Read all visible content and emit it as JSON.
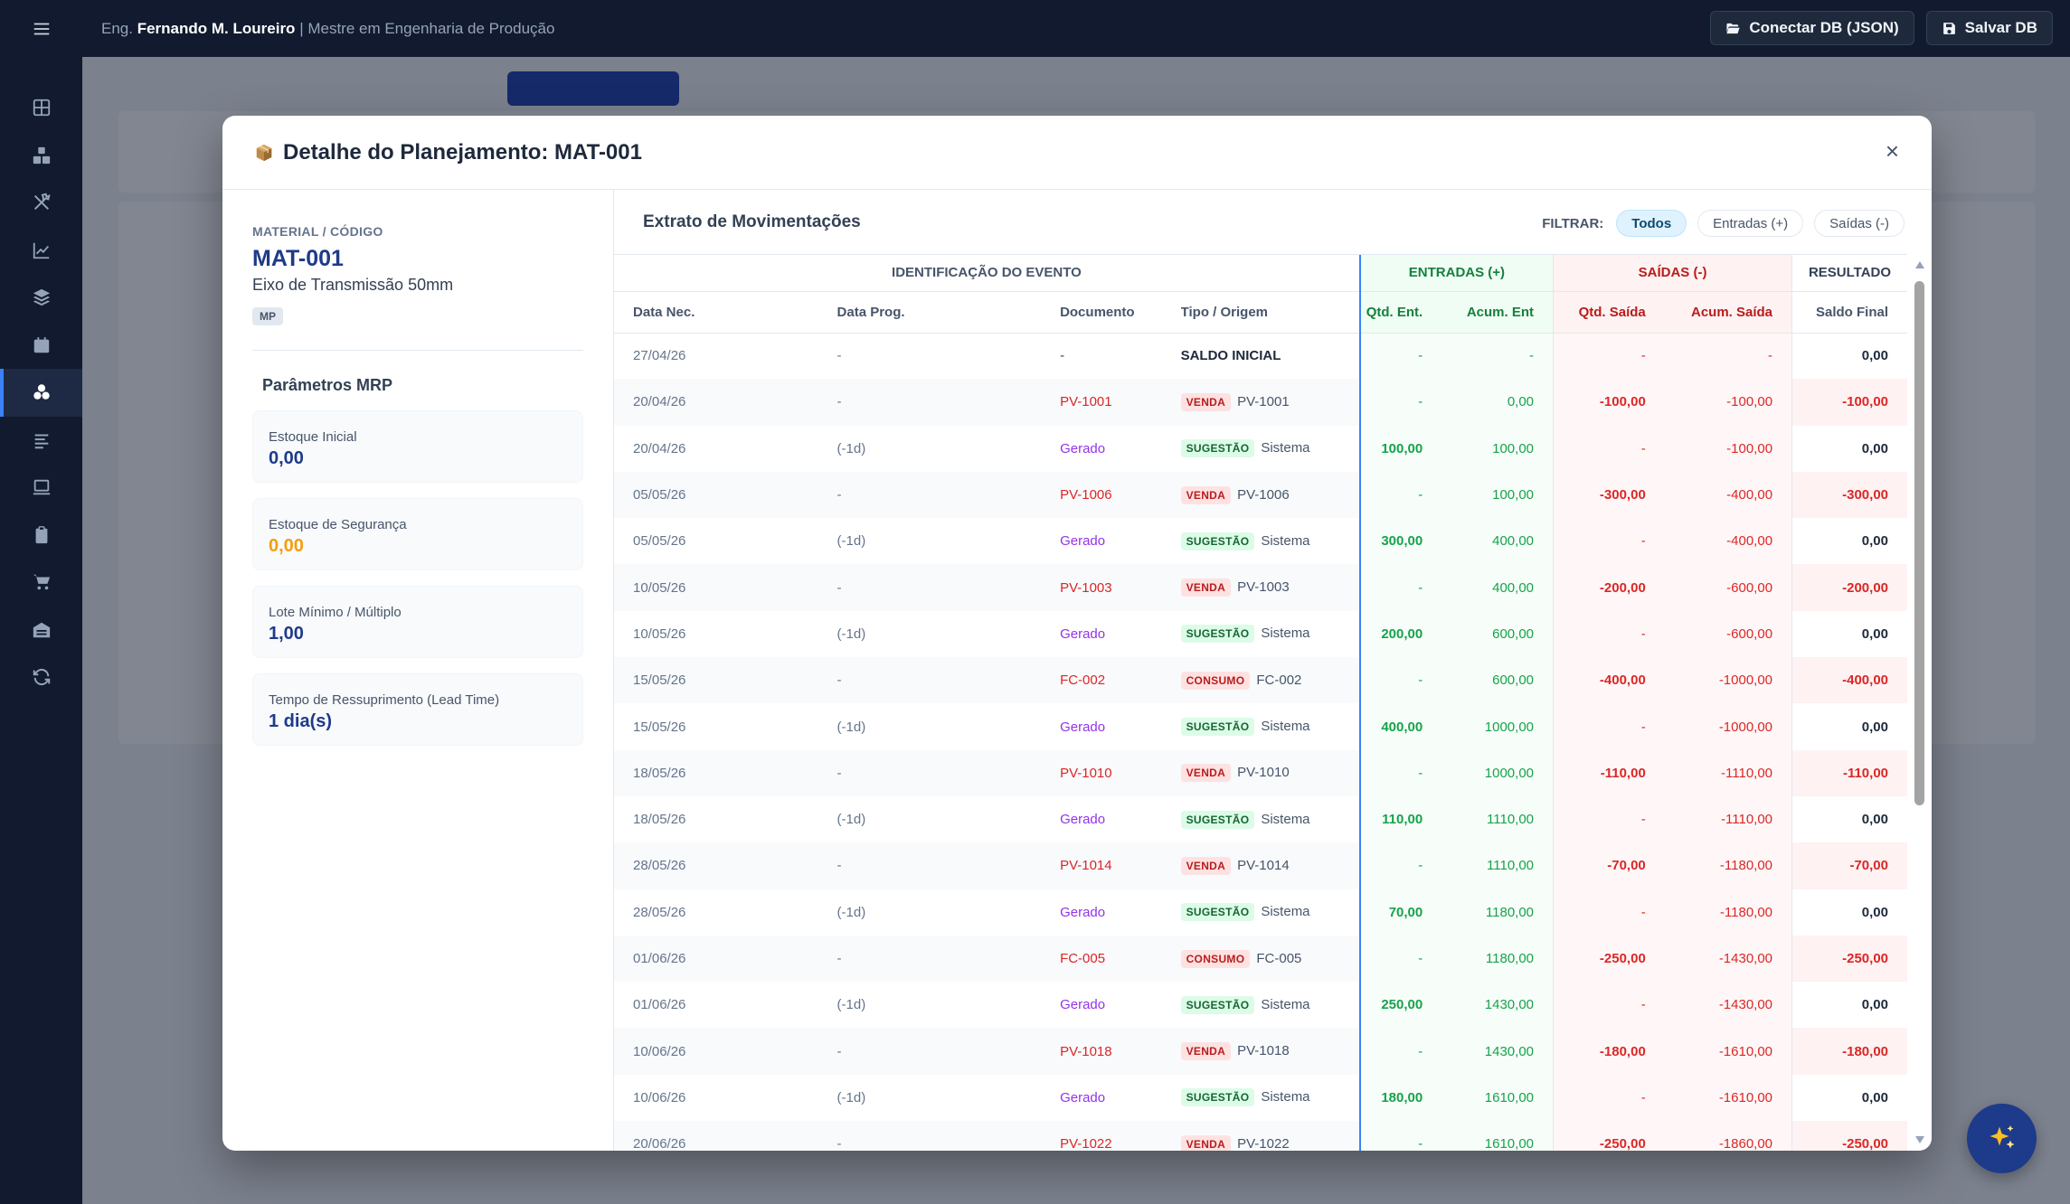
{
  "header": {
    "user_prefix": "Eng.",
    "user_name": "Fernando M. Loureiro",
    "user_role": "| Mestre em Engenharia de Produção",
    "connect_label": "Conectar DB (JSON)",
    "save_label": "Salvar DB"
  },
  "sidebar_icons": [
    "dashboard-icon",
    "cubes-icon",
    "tools-icon",
    "chart-line-icon",
    "layers-icon",
    "calendar-icon",
    "cubes-mrp-icon",
    "list-icon",
    "laptop-icon",
    "clipboard-icon",
    "cart-icon",
    "warehouse-icon",
    "sync-icon"
  ],
  "modal": {
    "title": "Detalhe do Planejamento: MAT-001",
    "close_label": "×"
  },
  "material": {
    "label": "MATERIAL / CÓDIGO",
    "code": "MAT-001",
    "description": "Eixo de Transmissão 50mm",
    "badge": "MP"
  },
  "params": {
    "title": "Parâmetros MRP",
    "items": [
      {
        "label": "Estoque Inicial",
        "value": "0,00"
      },
      {
        "label": "Estoque de Segurança",
        "value": "0,00"
      },
      {
        "label": "Lote Mínimo / Múltiplo",
        "value": "1,00"
      },
      {
        "label": "Tempo de Ressuprimento (Lead Time)",
        "value": "1 dia(s)"
      }
    ]
  },
  "extrato": {
    "title": "Extrato de Movimentações",
    "filter_label": "FILTRAR:",
    "filters": [
      "Todos",
      "Entradas (+)",
      "Saídas (-)"
    ],
    "active_filter": "Todos"
  },
  "table": {
    "groups": {
      "id": "IDENTIFICAÇÃO DO EVENTO",
      "ent": "ENTRADAS (+)",
      "sai": "SAÍDAS (-)",
      "res": "RESULTADO"
    },
    "columns": [
      "Data Nec.",
      "Data Prog.",
      "Documento",
      "Tipo / Origem",
      "Qtd. Ent.",
      "Acum. Ent",
      "Qtd. Saída",
      "Acum. Saída",
      "Saldo Final"
    ],
    "rows": [
      {
        "date": "27/04/26",
        "prog": "-",
        "doc": "-",
        "doc_kind": "plain",
        "tag": "",
        "origin": "SALDO INICIAL",
        "qe": "-",
        "ae": "-",
        "qs": "-",
        "as": "-",
        "saldo": "0,00"
      },
      {
        "date": "20/04/26",
        "prog": "-",
        "doc": "PV-1001",
        "doc_kind": "red",
        "tag": "VENDA",
        "origin": "PV-1001",
        "qe": "-",
        "ae": "0,00",
        "qs": "-100,00",
        "as": "-100,00",
        "saldo": "-100,00"
      },
      {
        "date": "20/04/26",
        "prog": "(-1d)",
        "doc": "Gerado",
        "doc_kind": "purple",
        "tag": "SUGESTÃO",
        "origin": "Sistema",
        "qe": "100,00",
        "ae": "100,00",
        "qs": "-",
        "as": "-100,00",
        "saldo": "0,00"
      },
      {
        "date": "05/05/26",
        "prog": "-",
        "doc": "PV-1006",
        "doc_kind": "red",
        "tag": "VENDA",
        "origin": "PV-1006",
        "qe": "-",
        "ae": "100,00",
        "qs": "-300,00",
        "as": "-400,00",
        "saldo": "-300,00"
      },
      {
        "date": "05/05/26",
        "prog": "(-1d)",
        "doc": "Gerado",
        "doc_kind": "purple",
        "tag": "SUGESTÃO",
        "origin": "Sistema",
        "qe": "300,00",
        "ae": "400,00",
        "qs": "-",
        "as": "-400,00",
        "saldo": "0,00"
      },
      {
        "date": "10/05/26",
        "prog": "-",
        "doc": "PV-1003",
        "doc_kind": "red",
        "tag": "VENDA",
        "origin": "PV-1003",
        "qe": "-",
        "ae": "400,00",
        "qs": "-200,00",
        "as": "-600,00",
        "saldo": "-200,00"
      },
      {
        "date": "10/05/26",
        "prog": "(-1d)",
        "doc": "Gerado",
        "doc_kind": "purple",
        "tag": "SUGESTÃO",
        "origin": "Sistema",
        "qe": "200,00",
        "ae": "600,00",
        "qs": "-",
        "as": "-600,00",
        "saldo": "0,00"
      },
      {
        "date": "15/05/26",
        "prog": "-",
        "doc": "FC-002",
        "doc_kind": "red",
        "tag": "CONSUMO",
        "origin": "FC-002",
        "qe": "-",
        "ae": "600,00",
        "qs": "-400,00",
        "as": "-1000,00",
        "saldo": "-400,00"
      },
      {
        "date": "15/05/26",
        "prog": "(-1d)",
        "doc": "Gerado",
        "doc_kind": "purple",
        "tag": "SUGESTÃO",
        "origin": "Sistema",
        "qe": "400,00",
        "ae": "1000,00",
        "qs": "-",
        "as": "-1000,00",
        "saldo": "0,00"
      },
      {
        "date": "18/05/26",
        "prog": "-",
        "doc": "PV-1010",
        "doc_kind": "red",
        "tag": "VENDA",
        "origin": "PV-1010",
        "qe": "-",
        "ae": "1000,00",
        "qs": "-110,00",
        "as": "-1110,00",
        "saldo": "-110,00"
      },
      {
        "date": "18/05/26",
        "prog": "(-1d)",
        "doc": "Gerado",
        "doc_kind": "purple",
        "tag": "SUGESTÃO",
        "origin": "Sistema",
        "qe": "110,00",
        "ae": "1110,00",
        "qs": "-",
        "as": "-1110,00",
        "saldo": "0,00"
      },
      {
        "date": "28/05/26",
        "prog": "-",
        "doc": "PV-1014",
        "doc_kind": "red",
        "tag": "VENDA",
        "origin": "PV-1014",
        "qe": "-",
        "ae": "1110,00",
        "qs": "-70,00",
        "as": "-1180,00",
        "saldo": "-70,00"
      },
      {
        "date": "28/05/26",
        "prog": "(-1d)",
        "doc": "Gerado",
        "doc_kind": "purple",
        "tag": "SUGESTÃO",
        "origin": "Sistema",
        "qe": "70,00",
        "ae": "1180,00",
        "qs": "-",
        "as": "-1180,00",
        "saldo": "0,00"
      },
      {
        "date": "01/06/26",
        "prog": "-",
        "doc": "FC-005",
        "doc_kind": "red",
        "tag": "CONSUMO",
        "origin": "FC-005",
        "qe": "-",
        "ae": "1180,00",
        "qs": "-250,00",
        "as": "-1430,00",
        "saldo": "-250,00"
      },
      {
        "date": "01/06/26",
        "prog": "(-1d)",
        "doc": "Gerado",
        "doc_kind": "purple",
        "tag": "SUGESTÃO",
        "origin": "Sistema",
        "qe": "250,00",
        "ae": "1430,00",
        "qs": "-",
        "as": "-1430,00",
        "saldo": "0,00"
      },
      {
        "date": "10/06/26",
        "prog": "-",
        "doc": "PV-1018",
        "doc_kind": "red",
        "tag": "VENDA",
        "origin": "PV-1018",
        "qe": "-",
        "ae": "1430,00",
        "qs": "-180,00",
        "as": "-1610,00",
        "saldo": "-180,00"
      },
      {
        "date": "10/06/26",
        "prog": "(-1d)",
        "doc": "Gerado",
        "doc_kind": "purple",
        "tag": "SUGESTÃO",
        "origin": "Sistema",
        "qe": "180,00",
        "ae": "1610,00",
        "qs": "-",
        "as": "-1610,00",
        "saldo": "0,00"
      },
      {
        "date": "20/06/26",
        "prog": "-",
        "doc": "PV-1022",
        "doc_kind": "red",
        "tag": "VENDA",
        "origin": "PV-1022",
        "qe": "-",
        "ae": "1610,00",
        "qs": "-250,00",
        "as": "-1860,00",
        "saldo": "-250,00"
      }
    ]
  },
  "colors": {
    "accent": "#3b82f6",
    "entradas": "#16a34a",
    "saidas": "#dc2626",
    "warning": "#f59e0b",
    "brand_dark": "#1e3a8a"
  },
  "fab_icon": "sparkles-icon"
}
